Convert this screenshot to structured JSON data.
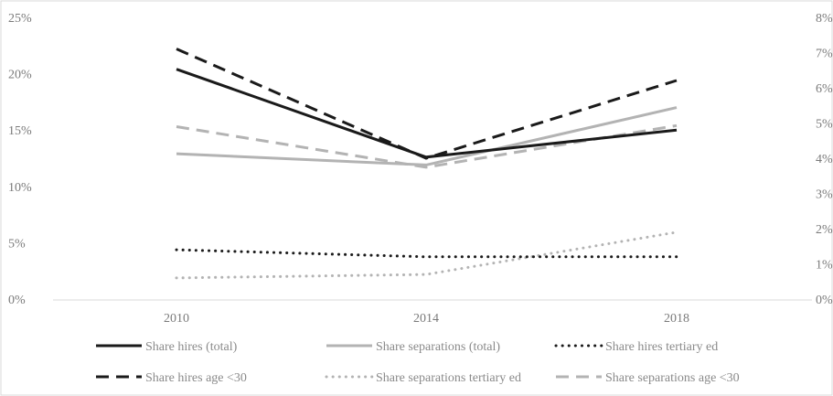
{
  "chart_data": {
    "type": "line",
    "categories": [
      "2010",
      "2014",
      "2018"
    ],
    "y_left": {
      "min": 0,
      "max": 25,
      "ticks": [
        "0%",
        "5%",
        "10%",
        "15%",
        "20%",
        "25%"
      ]
    },
    "y_right": {
      "min": 0,
      "max": 8,
      "ticks": [
        "0%",
        "1%",
        "2%",
        "3%",
        "4%",
        "5%",
        "6%",
        "7%",
        "8%"
      ]
    },
    "grid": false,
    "legend_placement": "bottom",
    "series": [
      {
        "name": "Share hires (total)",
        "axis": "left",
        "values": [
          20.4,
          12.6,
          15.0
        ],
        "color": "#1a1a1a",
        "dash": "solid"
      },
      {
        "name": "Share separations (total)",
        "axis": "left",
        "values": [
          12.9,
          11.9,
          17.0
        ],
        "color": "#b3b3b3",
        "dash": "solid"
      },
      {
        "name": "Share hires tertiary ed",
        "axis": "right",
        "values": [
          1.4,
          1.2,
          1.2
        ],
        "color": "#1a1a1a",
        "dash": "dotted"
      },
      {
        "name": "Share hires age <30",
        "axis": "left",
        "values": [
          22.2,
          12.5,
          19.4
        ],
        "color": "#1a1a1a",
        "dash": "dashed"
      },
      {
        "name": "Share separations tertiary ed",
        "axis": "right",
        "values": [
          0.6,
          0.7,
          1.9
        ],
        "color": "#b3b3b3",
        "dash": "dotted"
      },
      {
        "name": "Share separations  age <30",
        "axis": "left",
        "values": [
          15.3,
          11.7,
          15.4
        ],
        "color": "#b3b3b3",
        "dash": "dashed"
      }
    ]
  }
}
